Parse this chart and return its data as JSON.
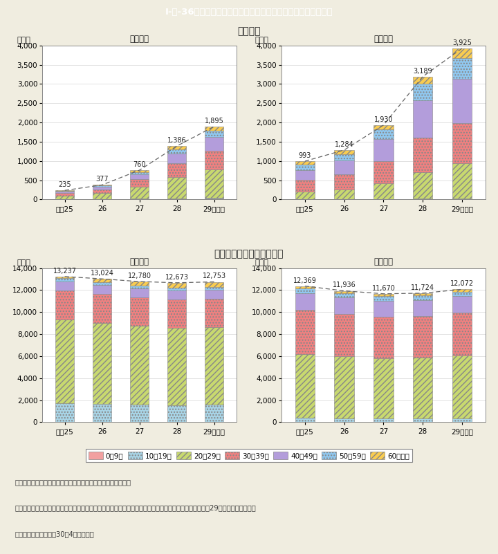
{
  "title": "I-特-36図　梅毒と性器クラミジア感染症の年次推移（男女別）",
  "section_syphilis": "＜梅毒＞",
  "section_chlamydia": "＜性器クラミジア感染症＞",
  "label_female": "（女性）",
  "label_male": "（男性）",
  "years": [
    "平成25",
    "26",
    "27",
    "28",
    "29"
  ],
  "year_suffix": "（年）",
  "ylabel": "（件）",
  "age_groups": [
    "0－9歳",
    "10－19歳",
    "20－29歳",
    "30－39歳",
    "40－49歳",
    "50－59歳",
    "60歳以上"
  ],
  "bar_colors": [
    "#f2a0a0",
    "#a8d4e6",
    "#c8d96f",
    "#f08080",
    "#b39ddb",
    "#90c8f0",
    "#f9cc50"
  ],
  "bar_hatches": [
    "",
    "....",
    "////",
    "....",
    "",
    "....",
    "////"
  ],
  "bar_edge_color": "#888888",
  "syphilis_female_totals": [
    235,
    377,
    760,
    1386,
    1895
  ],
  "syphilis_female_data": [
    [
      4,
      6,
      10,
      14,
      18
    ],
    [
      2,
      4,
      7,
      12,
      16
    ],
    [
      96,
      155,
      308,
      555,
      748
    ],
    [
      60,
      100,
      196,
      354,
      486
    ],
    [
      42,
      67,
      134,
      253,
      362
    ],
    [
      18,
      27,
      58,
      108,
      152
    ],
    [
      13,
      18,
      47,
      90,
      113
    ]
  ],
  "syphilis_male_totals": [
    993,
    1284,
    1930,
    3189,
    3925
  ],
  "syphilis_male_data": [
    [
      3,
      3,
      5,
      8,
      10
    ],
    [
      5,
      6,
      9,
      16,
      22
    ],
    [
      195,
      252,
      400,
      685,
      905
    ],
    [
      307,
      392,
      574,
      893,
      1038
    ],
    [
      258,
      353,
      580,
      965,
      1150
    ],
    [
      135,
      163,
      246,
      440,
      548
    ],
    [
      90,
      115,
      116,
      182,
      252
    ]
  ],
  "chlamydia_female_totals": [
    13237,
    13024,
    12780,
    12673,
    12753
  ],
  "chlamydia_female_data": [
    [
      20,
      20,
      18,
      17,
      17
    ],
    [
      1700,
      1650,
      1590,
      1540,
      1550
    ],
    [
      7577,
      7366,
      7138,
      7043,
      7043
    ],
    [
      2700,
      2648,
      2606,
      2578,
      2608
    ],
    [
      803,
      793,
      803,
      813,
      823
    ],
    [
      270,
      270,
      260,
      250,
      255
    ],
    [
      167,
      277,
      365,
      432,
      457
    ]
  ],
  "chlamydia_male_totals": [
    12369,
    11936,
    11670,
    11724,
    12072
  ],
  "chlamydia_male_data": [
    [
      10,
      10,
      8,
      8,
      8
    ],
    [
      375,
      355,
      335,
      325,
      335
    ],
    [
      5810,
      5615,
      5455,
      5510,
      5705
    ],
    [
      4020,
      3870,
      3800,
      3820,
      3900
    ],
    [
      1510,
      1460,
      1455,
      1455,
      1505
    ],
    [
      420,
      400,
      400,
      400,
      420
    ],
    [
      224,
      226,
      217,
      206,
      199
    ]
  ],
  "bg_color": "#f0ede0",
  "plot_bg": "#ffffff",
  "title_bg": "#4bbebe",
  "title_text_color": "#ffffff",
  "note_line1": "（備考）　１．厚生労働省「感染症発生動向調査」より作成。",
  "note_line2": "　　　　　２．梅毒は，全数報告による報告数。性器クラミジア感染症は，定点報告による報告数。平成29年の報告数は，暫定",
  "note_line3": "　　　　　　値（平成30年4月現在）。"
}
